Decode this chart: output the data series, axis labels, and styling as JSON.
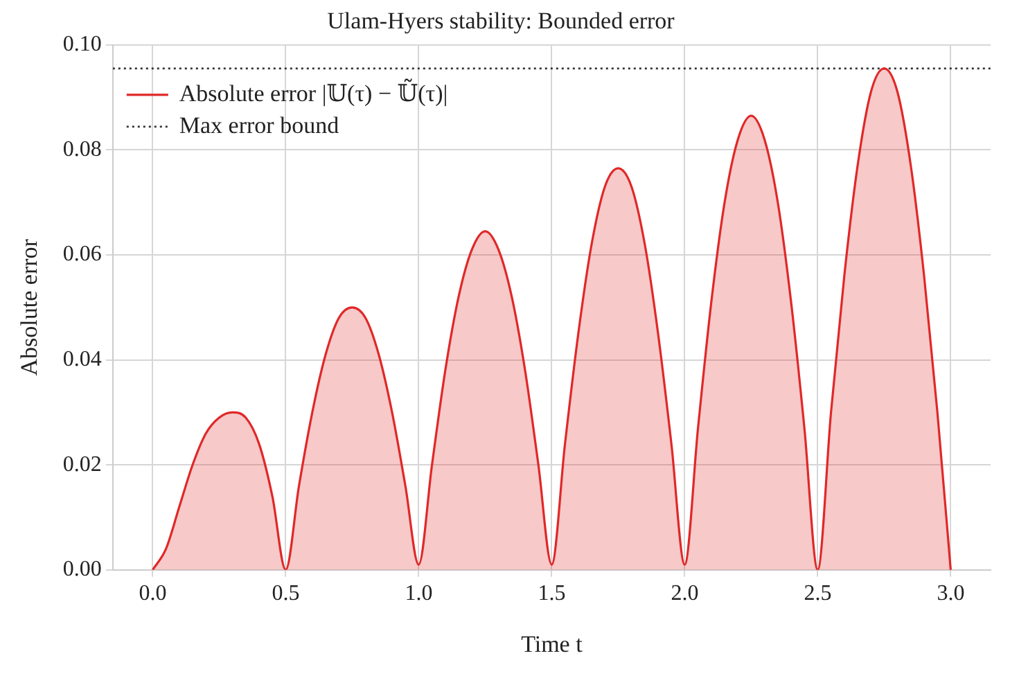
{
  "chart_data": {
    "type": "area",
    "title": "Ulam-Hyers stability: Bounded error",
    "xlabel": "Time t",
    "ylabel": "Absolute error",
    "x": [
      0,
      0.05,
      0.1,
      0.15,
      0.2,
      0.25,
      0.3,
      0.35,
      0.4,
      0.45,
      0.5,
      0.55,
      0.6,
      0.65,
      0.7,
      0.75,
      0.8,
      0.85,
      0.9,
      0.95,
      1.0,
      1.05,
      1.1,
      1.15,
      1.2,
      1.25,
      1.3,
      1.35,
      1.4,
      1.45,
      1.5,
      1.55,
      1.6,
      1.65,
      1.7,
      1.75,
      1.8,
      1.85,
      1.9,
      1.95,
      2.0,
      2.05,
      2.1,
      2.15,
      2.2,
      2.25,
      2.3,
      2.35,
      2.4,
      2.45,
      2.5,
      2.55,
      2.6,
      2.65,
      2.7,
      2.75,
      2.8,
      2.85,
      2.9,
      2.95,
      3.0
    ],
    "series": [
      {
        "name": "Absolute error |𝕌(τ) − 𝕌̃(τ)|",
        "color": "#e02828",
        "values": [
          0,
          0.004,
          0.012,
          0.02,
          0.026,
          0.029,
          0.03,
          0.029,
          0.024,
          0.014,
          0,
          0.016,
          0.03,
          0.041,
          0.048,
          0.05,
          0.048,
          0.041,
          0.03,
          0.016,
          0.001,
          0.02,
          0.038,
          0.052,
          0.061,
          0.0645,
          0.061,
          0.052,
          0.038,
          0.02,
          0.001,
          0.024,
          0.045,
          0.062,
          0.073,
          0.0765,
          0.073,
          0.062,
          0.045,
          0.024,
          0.001,
          0.027,
          0.051,
          0.07,
          0.082,
          0.0865,
          0.082,
          0.07,
          0.051,
          0.027,
          0,
          0.03,
          0.056,
          0.077,
          0.091,
          0.0955,
          0.091,
          0.077,
          0.056,
          0.03,
          0
        ]
      }
    ],
    "ref_lines": [
      {
        "axis": "y",
        "value": 0.0955,
        "label": "Max error bound",
        "color": "#333333",
        "line_style": "dotted"
      }
    ],
    "xlim": [
      -0.15,
      3.15
    ],
    "xticks": [
      {
        "value": 0,
        "label": "0.0"
      },
      0.5,
      {
        "value": 1,
        "label": "1.0"
      },
      1.5,
      {
        "value": 2,
        "label": "2.0"
      },
      2.5,
      {
        "value": 3,
        "label": "3.0"
      }
    ],
    "ylim": [
      0,
      0.1
    ],
    "yticks": [
      {
        "value": 0,
        "label": "0.00"
      },
      0.02,
      0.04,
      0.06,
      0.08,
      {
        "value": 0.1,
        "label": "0.10"
      }
    ],
    "grid": true,
    "legend": "top left",
    "marker": "none",
    "line_style": "solid"
  }
}
